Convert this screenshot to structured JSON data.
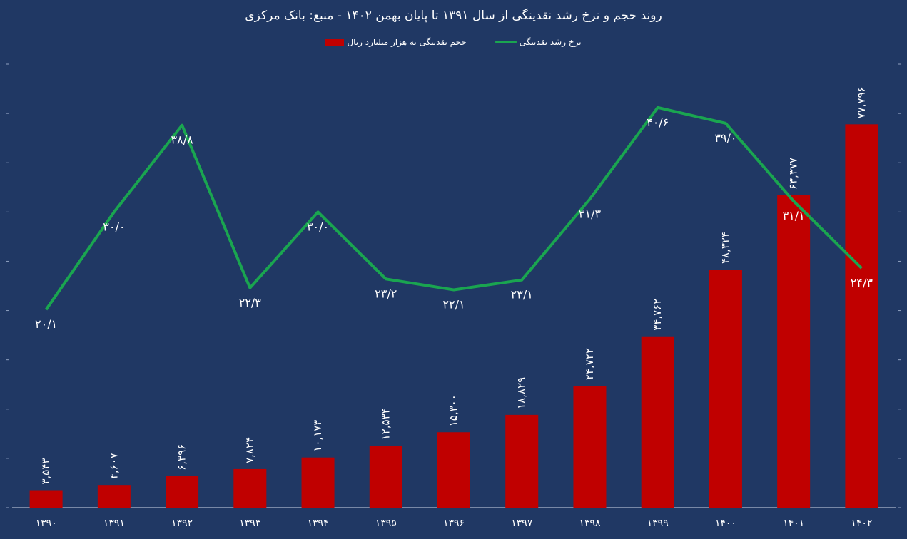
{
  "chart_data": {
    "type": "bar+line",
    "title": "روند حجم و نرخ رشد نقدینگی از سال ۱۳۹۱ تا پایان بهمن ۱۴۰۲ - منبع: بانک مرکزی",
    "legend_position": "top",
    "categories": [
      "۱۳۹۰",
      "۱۳۹۱",
      "۱۳۹۲",
      "۱۳۹۳",
      "۱۳۹۴",
      "۱۳۹۵",
      "۱۳۹۶",
      "۱۳۹۷",
      "۱۳۹۸",
      "۱۳۹۹",
      "۱۴۰۰",
      "۱۴۰۱",
      "۱۴۰۲"
    ],
    "grid": false,
    "series": [
      {
        "name": "حجم نقدینگی به هزار میلیارد ریال",
        "type": "bar",
        "axis": "left",
        "color": "#c00000",
        "values": [
          3543,
          4607,
          6396,
          7824,
          10173,
          12534,
          15300,
          18829,
          24722,
          34762,
          48324,
          63377,
          77796
        ],
        "labels": [
          "۳,۵۴۳",
          "۴,۶۰۷",
          "۶,۳۹۶",
          "۷,۸۲۴",
          "۱۰,۱۷۳",
          "۱۲,۵۳۴",
          "۱۵,۳۰۰",
          "۱۸,۸۲۹",
          "۲۴,۷۲۲",
          "۳۴,۷۶۲",
          "۴۸,۳۲۴",
          "۶۳,۳۷۷",
          "۷۷,۷۹۶"
        ]
      },
      {
        "name": "نرخ رشد نقدینگی",
        "type": "line",
        "axis": "right",
        "color": "#1aa550",
        "values": [
          20.1,
          30.0,
          38.8,
          22.3,
          30.0,
          23.2,
          22.1,
          23.1,
          31.3,
          40.6,
          39.0,
          31.1,
          24.3
        ],
        "labels": [
          "۲۰/۱",
          "۳۰/۰",
          "۳۸/۸",
          "۲۲/۳",
          "۳۰/۰",
          "۲۳/۲",
          "۲۲/۱",
          "۲۳/۱",
          "۳۱/۳",
          "۴۰/۶",
          "۳۹/۰",
          "۳۱/۱",
          "۲۴/۳"
        ]
      }
    ],
    "ylim_left": [
      0,
      90000
    ],
    "ylim_right": [
      0,
      45
    ],
    "background": "#203864"
  }
}
